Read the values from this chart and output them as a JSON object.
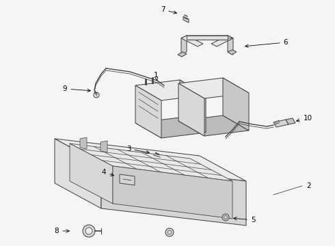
{
  "bg_color": "#f5f5f5",
  "line_color": "#444444",
  "label_color": "#000000",
  "fig_width": 4.9,
  "fig_height": 3.6,
  "dpi": 100
}
